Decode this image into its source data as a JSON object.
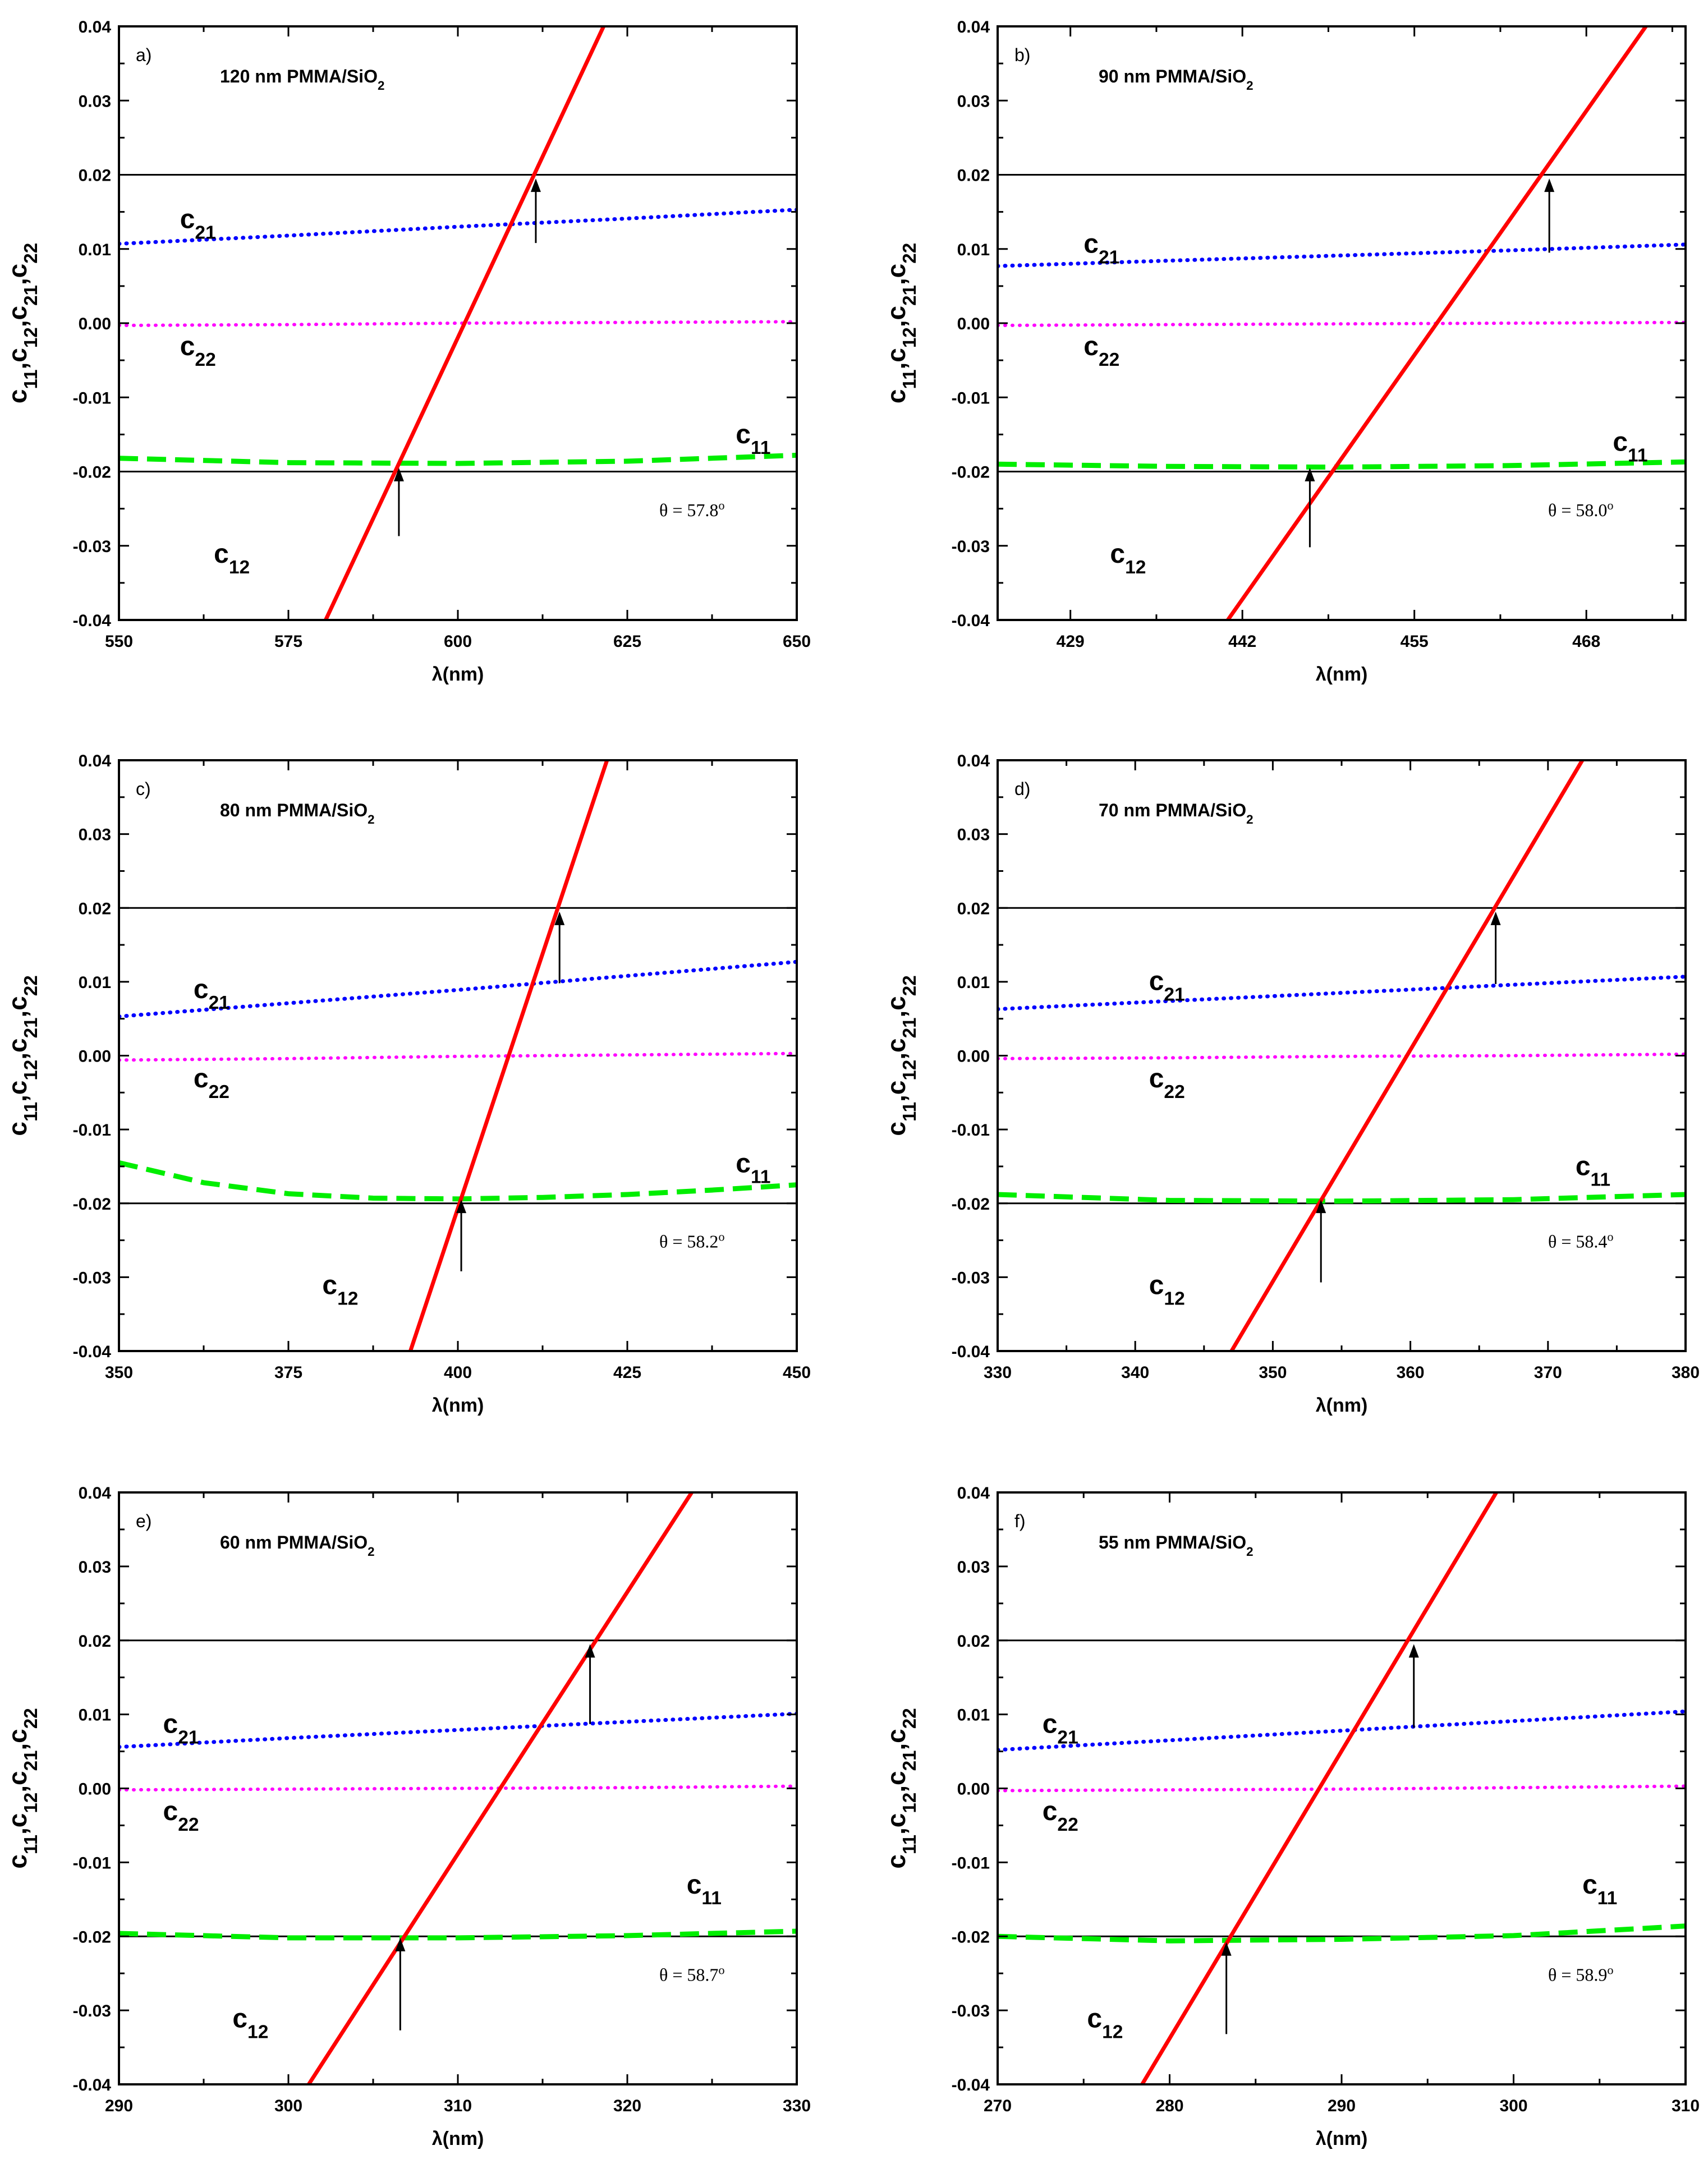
{
  "figure": {
    "description_free": true
  },
  "chart_data": [
    {
      "panel": "a)",
      "type": "line",
      "sample_prefix": "120 nm PMMA/SiO",
      "sample_sub": "2",
      "theta": "θ = 57.8",
      "theta_sup": "o",
      "xlabel": "λ(nm)",
      "ylabel_text": "c11,c12,c21,c22",
      "xlim": [
        550,
        650
      ],
      "ylim": [
        -0.04,
        0.04
      ],
      "xticks": [
        550,
        575,
        600,
        625,
        650
      ],
      "xtick_labels": [
        "550",
        "575",
        "600",
        "625",
        "650"
      ],
      "yticks": [
        -0.04,
        -0.03,
        -0.02,
        -0.01,
        0.0,
        0.01,
        0.02,
        0.03,
        0.04
      ],
      "ytick_labels": [
        "-0.04",
        "-0.03",
        "-0.02",
        "-0.01",
        "0.00",
        "0.01",
        "0.02",
        "0.03",
        "0.04"
      ],
      "hlines": [
        0.02,
        -0.02
      ],
      "series": [
        {
          "name": "c12",
          "style": "solid",
          "color": "#ff0000",
          "x": [
            580.5,
            621.5
          ],
          "y": [
            -0.04,
            0.04
          ]
        },
        {
          "name": "c21",
          "style": "dotted",
          "color": "#0000ff",
          "x": [
            550,
            575,
            600,
            625,
            650
          ],
          "y": [
            0.0107,
            0.0118,
            0.013,
            0.0141,
            0.0153
          ]
        },
        {
          "name": "c22",
          "style": "dotted",
          "color": "#ff00ff",
          "x": [
            550,
            575,
            600,
            625,
            650
          ],
          "y": [
            -0.0003,
            -0.0002,
            0.0,
            0.0001,
            0.0002
          ]
        },
        {
          "name": "c11",
          "style": "dashed",
          "color": "#00ee00",
          "x": [
            550,
            575,
            600,
            625,
            650
          ],
          "y": [
            -0.0182,
            -0.0188,
            -0.0189,
            -0.0186,
            -0.0178
          ]
        }
      ],
      "arrows": [
        {
          "x": 611.5,
          "y_from": 0.0108,
          "y_to": 0.0195
        },
        {
          "x": 591.3,
          "y_from": -0.0287,
          "y_to": -0.0195
        }
      ],
      "labels": [
        {
          "base": "c",
          "sub": "21",
          "x": 559,
          "y": 0.0128
        },
        {
          "base": "c",
          "sub": "22",
          "x": 559,
          "y": -0.0043
        },
        {
          "base": "c",
          "sub": "11",
          "x": 641,
          "y": -0.0162
        },
        {
          "base": "c",
          "sub": "12",
          "x": 564,
          "y": -0.0323
        }
      ]
    },
    {
      "panel": "b)",
      "type": "line",
      "sample_prefix": "90 nm PMMA/SiO",
      "sample_sub": "2",
      "theta": "θ = 58.0",
      "theta_sup": "o",
      "xlabel": "λ(nm)",
      "ylabel_text": "c11,c12,c21,c22",
      "xlim": [
        423.5,
        475.5
      ],
      "ylim": [
        -0.04,
        0.04
      ],
      "xticks": [
        429,
        442,
        455,
        468
      ],
      "xtick_labels": [
        "429",
        "442",
        "455",
        "468"
      ],
      "yticks": [
        -0.04,
        -0.03,
        -0.02,
        -0.01,
        0.0,
        0.01,
        0.02,
        0.03,
        0.04
      ],
      "ytick_labels": [
        "-0.04",
        "-0.03",
        "-0.02",
        "-0.01",
        "0.00",
        "0.01",
        "0.02",
        "0.03",
        "0.04"
      ],
      "hlines": [
        0.02,
        -0.02
      ],
      "series": [
        {
          "name": "c12",
          "style": "solid",
          "color": "#ff0000",
          "x": [
            440.9,
            472.5
          ],
          "y": [
            -0.04,
            0.04
          ]
        },
        {
          "name": "c21",
          "style": "dotted",
          "color": "#0000ff",
          "x": [
            423.5,
            436,
            449,
            462,
            475.5
          ],
          "y": [
            0.0077,
            0.0084,
            0.0091,
            0.0098,
            0.0106
          ]
        },
        {
          "name": "c22",
          "style": "dotted",
          "color": "#ff00ff",
          "x": [
            423.5,
            436,
            449,
            462,
            475.5
          ],
          "y": [
            -0.0003,
            -0.0002,
            -0.0001,
            0.0,
            0.0001
          ]
        },
        {
          "name": "c11",
          "style": "dashed",
          "color": "#00ee00",
          "x": [
            423.5,
            436,
            449,
            462,
            475.5
          ],
          "y": [
            -0.019,
            -0.0193,
            -0.0194,
            -0.0192,
            -0.0187
          ]
        }
      ],
      "arrows": [
        {
          "x": 465.2,
          "y_from": 0.0095,
          "y_to": 0.0195
        },
        {
          "x": 447.1,
          "y_from": -0.0302,
          "y_to": -0.0195
        }
      ],
      "labels": [
        {
          "base": "c",
          "sub": "21",
          "x": 430,
          "y": 0.0095
        },
        {
          "base": "c",
          "sub": "22",
          "x": 430,
          "y": -0.0043
        },
        {
          "base": "c",
          "sub": "11",
          "x": 470,
          "y": -0.0172
        },
        {
          "base": "c",
          "sub": "12",
          "x": 432,
          "y": -0.0323
        }
      ]
    },
    {
      "panel": "c)",
      "type": "line",
      "sample_prefix": "80 nm PMMA/SiO",
      "sample_sub": "2",
      "theta": "θ = 58.2",
      "theta_sup": "o",
      "xlabel": "λ(nm)",
      "ylabel_text": "c11,c12,c21,c22",
      "xlim": [
        350,
        450
      ],
      "ylim": [
        -0.04,
        0.04
      ],
      "xticks": [
        350,
        375,
        400,
        425,
        450
      ],
      "xtick_labels": [
        "350",
        "375",
        "400",
        "425",
        "450"
      ],
      "yticks": [
        -0.04,
        -0.03,
        -0.02,
        -0.01,
        0.0,
        0.01,
        0.02,
        0.03,
        0.04
      ],
      "ytick_labels": [
        "-0.04",
        "-0.03",
        "-0.02",
        "-0.01",
        "0.00",
        "0.01",
        "0.02",
        "0.03",
        "0.04"
      ],
      "hlines": [
        0.02,
        -0.02
      ],
      "series": [
        {
          "name": "c12",
          "style": "solid",
          "color": "#ff0000",
          "x": [
            393,
            422
          ],
          "y": [
            -0.04,
            0.04
          ]
        },
        {
          "name": "c21",
          "style": "dotted",
          "color": "#0000ff",
          "x": [
            350,
            375,
            400,
            425,
            450
          ],
          "y": [
            0.0053,
            0.0071,
            0.0089,
            0.0108,
            0.0127
          ]
        },
        {
          "name": "c22",
          "style": "dotted",
          "color": "#ff00ff",
          "x": [
            350,
            375,
            400,
            425,
            450
          ],
          "y": [
            -0.0006,
            -0.0004,
            -0.0001,
            0.0001,
            0.0003
          ]
        },
        {
          "name": "c11",
          "style": "dashed",
          "color": "#00ee00",
          "x": [
            350,
            362.5,
            375,
            387.5,
            400,
            412.5,
            425,
            437.5,
            450
          ],
          "y": [
            -0.0145,
            -0.0172,
            -0.0187,
            -0.0193,
            -0.0194,
            -0.0192,
            -0.0188,
            -0.0182,
            -0.0175
          ]
        }
      ],
      "arrows": [
        {
          "x": 415,
          "y_from": 0.0098,
          "y_to": 0.0195
        },
        {
          "x": 400.5,
          "y_from": -0.0292,
          "y_to": -0.0195
        }
      ],
      "labels": [
        {
          "base": "c",
          "sub": "21",
          "x": 361,
          "y": 0.0078
        },
        {
          "base": "c",
          "sub": "22",
          "x": 361,
          "y": -0.0043
        },
        {
          "base": "c",
          "sub": "11",
          "x": 441,
          "y": -0.0158
        },
        {
          "base": "c",
          "sub": "12",
          "x": 380,
          "y": -0.0323
        }
      ]
    },
    {
      "panel": "d)",
      "type": "line",
      "sample_prefix": "70 nm PMMA/SiO",
      "sample_sub": "2",
      "theta": "θ = 58.4",
      "theta_sup": "o",
      "xlabel": "λ(nm)",
      "ylabel_text": "c11,c12,c21,c22",
      "xlim": [
        330,
        380
      ],
      "ylim": [
        -0.04,
        0.04
      ],
      "xticks": [
        330,
        340,
        350,
        360,
        370,
        380
      ],
      "xtick_labels": [
        "330",
        "340",
        "350",
        "360",
        "370",
        "380"
      ],
      "yticks": [
        -0.04,
        -0.03,
        -0.02,
        -0.01,
        0.0,
        0.01,
        0.02,
        0.03,
        0.04
      ],
      "ytick_labels": [
        "-0.04",
        "-0.03",
        "-0.02",
        "-0.01",
        "0.00",
        "0.01",
        "0.02",
        "0.03",
        "0.04"
      ],
      "hlines": [
        0.02,
        -0.02
      ],
      "series": [
        {
          "name": "c12",
          "style": "solid",
          "color": "#ff0000",
          "x": [
            347,
            372.5
          ],
          "y": [
            -0.04,
            0.04
          ]
        },
        {
          "name": "c21",
          "style": "dotted",
          "color": "#0000ff",
          "x": [
            330,
            342.5,
            355,
            367.5,
            380
          ],
          "y": [
            0.0063,
            0.0074,
            0.0085,
            0.0096,
            0.0107
          ]
        },
        {
          "name": "c22",
          "style": "dotted",
          "color": "#ff00ff",
          "x": [
            330,
            342.5,
            355,
            367.5,
            380
          ],
          "y": [
            -0.0004,
            -0.0003,
            -0.0001,
            0.0,
            0.0002
          ]
        },
        {
          "name": "c11",
          "style": "dashed",
          "color": "#00ee00",
          "x": [
            330,
            342.5,
            355,
            367.5,
            380
          ],
          "y": [
            -0.0188,
            -0.0196,
            -0.0197,
            -0.0195,
            -0.0188
          ]
        }
      ],
      "arrows": [
        {
          "x": 366.2,
          "y_from": 0.0097,
          "y_to": 0.0195
        },
        {
          "x": 353.5,
          "y_from": -0.0307,
          "y_to": -0.0195
        }
      ],
      "labels": [
        {
          "base": "c",
          "sub": "21",
          "x": 341,
          "y": 0.0089
        },
        {
          "base": "c",
          "sub": "22",
          "x": 341,
          "y": -0.0043
        },
        {
          "base": "c",
          "sub": "11",
          "x": 372,
          "y": -0.0162
        },
        {
          "base": "c",
          "sub": "12",
          "x": 341,
          "y": -0.0323
        }
      ]
    },
    {
      "panel": "e)",
      "type": "line",
      "sample_prefix": "60 nm PMMA/SiO",
      "sample_sub": "2",
      "theta": "θ = 58.7",
      "theta_sup": "o",
      "xlabel": "λ(nm)",
      "ylabel_text": "c11,c12,c21,c22",
      "xlim": [
        290,
        330
      ],
      "ylim": [
        -0.04,
        0.04
      ],
      "xticks": [
        290,
        300,
        310,
        320,
        330
      ],
      "xtick_labels": [
        "290",
        "300",
        "310",
        "320",
        "330"
      ],
      "yticks": [
        -0.04,
        -0.03,
        -0.02,
        -0.01,
        0.0,
        0.01,
        0.02,
        0.03,
        0.04
      ],
      "ytick_labels": [
        "-0.04",
        "-0.03",
        "-0.02",
        "-0.01",
        "0.00",
        "0.01",
        "0.02",
        "0.03",
        "0.04"
      ],
      "hlines": [
        0.02,
        -0.02
      ],
      "series": [
        {
          "name": "c12",
          "style": "solid",
          "color": "#ff0000",
          "x": [
            301.2,
            323.8
          ],
          "y": [
            -0.04,
            0.04
          ]
        },
        {
          "name": "c21",
          "style": "dotted",
          "color": "#0000ff",
          "x": [
            290,
            300,
            310,
            320,
            330
          ],
          "y": [
            0.0056,
            0.0068,
            0.0079,
            0.009,
            0.0101
          ]
        },
        {
          "name": "c22",
          "style": "dotted",
          "color": "#ff00ff",
          "x": [
            290,
            300,
            310,
            320,
            330
          ],
          "y": [
            -0.0002,
            -0.0001,
            0.0,
            0.0001,
            0.0003
          ]
        },
        {
          "name": "c11",
          "style": "dashed",
          "color": "#00ee00",
          "x": [
            290,
            300,
            310,
            320,
            330
          ],
          "y": [
            -0.0196,
            -0.0202,
            -0.0202,
            -0.0199,
            -0.0193
          ]
        }
      ],
      "arrows": [
        {
          "x": 317.8,
          "y_from": 0.0087,
          "y_to": 0.0195
        },
        {
          "x": 306.6,
          "y_from": -0.0327,
          "y_to": -0.0202
        }
      ],
      "labels": [
        {
          "base": "c",
          "sub": "21",
          "x": 292.6,
          "y": 0.0075
        },
        {
          "base": "c",
          "sub": "22",
          "x": 292.6,
          "y": -0.0043
        },
        {
          "base": "c",
          "sub": "11",
          "x": 323.5,
          "y": -0.0142
        },
        {
          "base": "c",
          "sub": "12",
          "x": 296.7,
          "y": -0.0323
        }
      ]
    },
    {
      "panel": "f)",
      "type": "line",
      "sample_prefix": "55 nm PMMA/SiO",
      "sample_sub": "2",
      "theta": "θ = 58.9",
      "theta_sup": "o",
      "xlabel": "λ(nm)",
      "ylabel_text": "c11,c12,c21,c22",
      "xlim": [
        270,
        310
      ],
      "ylim": [
        -0.04,
        0.04
      ],
      "xticks": [
        270,
        280,
        290,
        300,
        310
      ],
      "xtick_labels": [
        "270",
        "280",
        "290",
        "300",
        "310"
      ],
      "yticks": [
        -0.04,
        -0.03,
        -0.02,
        -0.01,
        0.0,
        0.01,
        0.02,
        0.03,
        0.04
      ],
      "ytick_labels": [
        "-0.04",
        "-0.03",
        "-0.02",
        "-0.01",
        "0.00",
        "0.01",
        "0.02",
        "0.03",
        "0.04"
      ],
      "hlines": [
        0.02,
        -0.02
      ],
      "series": [
        {
          "name": "c12",
          "style": "solid",
          "color": "#ff0000",
          "x": [
            278.4,
            299
          ],
          "y": [
            -0.04,
            0.04
          ]
        },
        {
          "name": "c21",
          "style": "dotted",
          "color": "#0000ff",
          "x": [
            270,
            280,
            290,
            300,
            310
          ],
          "y": [
            0.0052,
            0.0065,
            0.0078,
            0.0091,
            0.0104
          ]
        },
        {
          "name": "c22",
          "style": "dotted",
          "color": "#ff00ff",
          "x": [
            270,
            280,
            290,
            300,
            310
          ],
          "y": [
            -0.0003,
            -0.0002,
            -0.0001,
            0.0001,
            0.0003
          ]
        },
        {
          "name": "c11",
          "style": "dashed",
          "color": "#00ee00",
          "x": [
            270,
            280,
            290,
            300,
            310
          ],
          "y": [
            -0.02,
            -0.0206,
            -0.0204,
            -0.0199,
            -0.0186
          ]
        }
      ],
      "arrows": [
        {
          "x": 294.2,
          "y_from": 0.0082,
          "y_to": 0.0195
        },
        {
          "x": 283.3,
          "y_from": -0.0332,
          "y_to": -0.0208
        }
      ],
      "labels": [
        {
          "base": "c",
          "sub": "21",
          "x": 272.6,
          "y": 0.0075
        },
        {
          "base": "c",
          "sub": "22",
          "x": 272.6,
          "y": -0.0043
        },
        {
          "base": "c",
          "sub": "11",
          "x": 304,
          "y": -0.0142
        },
        {
          "base": "c",
          "sub": "12",
          "x": 275.2,
          "y": -0.0323
        }
      ]
    }
  ]
}
